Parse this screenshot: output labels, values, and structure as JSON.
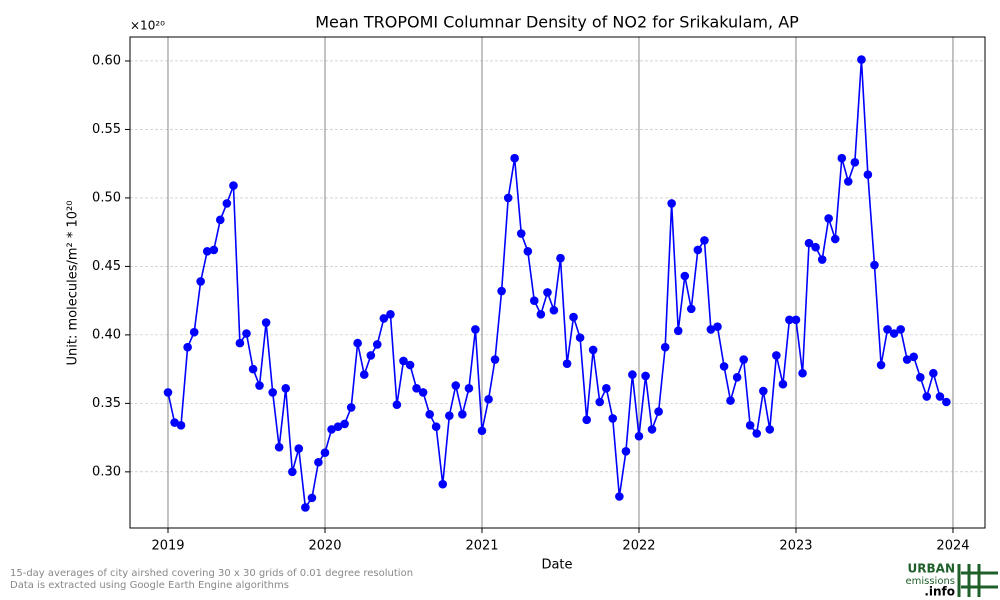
{
  "chart_data": {
    "type": "line",
    "title": "Mean TROPOMI Columnar Density of NO2 for Srikakulam, AP",
    "x_label": "Date",
    "y_label": "Unit: molecules/m² * 10²⁰",
    "y_offset_label": "×10²⁰",
    "footnote": [
      "15-day averages of city airshed covering 30 x 30 grids of 0.01 degree resolution",
      "Data is extracted using Google Earth Engine algorithms"
    ],
    "logo": [
      "URBAN",
      "emissions",
      ".info"
    ],
    "grid": true,
    "xlim": [
      2018.758,
      2024.204
    ],
    "xticks": [
      2019,
      2020,
      2021,
      2022,
      2023,
      2024
    ],
    "ylim": [
      0.259,
      0.6175
    ],
    "yticks": [
      {
        "value": 0.3,
        "label": "0.30"
      },
      0.35,
      {
        "value": 0.4,
        "label": "0.40"
      },
      0.45,
      {
        "value": 0.5,
        "label": "0.50"
      },
      0.55,
      {
        "value": 0.6,
        "label": "0.60"
      }
    ],
    "x": [
      2019,
      2019.042,
      2019.083,
      2019.125,
      2019.167,
      2019.208,
      2019.25,
      2019.292,
      2019.333,
      2019.375,
      2019.417,
      2019.458,
      2019.5,
      2019.542,
      2019.583,
      2019.625,
      2019.667,
      2019.708,
      2019.75,
      2019.792,
      2019.833,
      2019.875,
      2019.917,
      2019.958,
      2020,
      2020.042,
      2020.083,
      2020.125,
      2020.167,
      2020.208,
      2020.25,
      2020.292,
      2020.333,
      2020.375,
      2020.417,
      2020.458,
      2020.5,
      2020.542,
      2020.583,
      2020.625,
      2020.667,
      2020.708,
      2020.75,
      2020.792,
      2020.833,
      2020.875,
      2020.917,
      2020.958,
      2021,
      2021.042,
      2021.083,
      2021.125,
      2021.167,
      2021.208,
      2021.25,
      2021.292,
      2021.333,
      2021.375,
      2021.417,
      2021.458,
      2021.5,
      2021.542,
      2021.583,
      2021.625,
      2021.667,
      2021.708,
      2021.75,
      2021.792,
      2021.833,
      2021.875,
      2021.917,
      2021.958,
      2022,
      2022.042,
      2022.083,
      2022.125,
      2022.167,
      2022.208,
      2022.25,
      2022.292,
      2022.333,
      2022.375,
      2022.417,
      2022.458,
      2022.5,
      2022.542,
      2022.583,
      2022.625,
      2022.667,
      2022.708,
      2022.75,
      2022.792,
      2022.833,
      2022.875,
      2022.917,
      2022.958,
      2023,
      2023.042,
      2023.083,
      2023.125,
      2023.167,
      2023.208,
      2023.25,
      2023.292,
      2023.333,
      2023.375,
      2023.417,
      2023.458,
      2023.5,
      2023.542,
      2023.583,
      2023.625,
      2023.667,
      2023.708,
      2023.75,
      2023.792,
      2023.833,
      2023.875,
      2023.917,
      2023.958
    ],
    "series": [
      {
        "name": "NO2",
        "color": "#0000ff",
        "values": [
          0.358,
          0.336,
          0.334,
          0.391,
          0.402,
          0.439,
          0.461,
          0.462,
          0.484,
          0.496,
          0.509,
          0.394,
          0.401,
          0.375,
          0.363,
          0.409,
          0.358,
          0.318,
          0.361,
          0.3,
          0.317,
          0.274,
          0.281,
          0.307,
          0.314,
          0.331,
          0.333,
          0.335,
          0.347,
          0.394,
          0.371,
          0.385,
          0.393,
          0.412,
          0.415,
          0.349,
          0.381,
          0.378,
          0.361,
          0.358,
          0.342,
          0.333,
          0.291,
          0.341,
          0.363,
          0.342,
          0.361,
          0.404,
          0.33,
          0.353,
          0.382,
          0.432,
          0.5,
          0.529,
          0.474,
          0.461,
          0.425,
          0.415,
          0.431,
          0.418,
          0.456,
          0.379,
          0.413,
          0.398,
          0.338,
          0.389,
          0.351,
          0.361,
          0.339,
          0.282,
          0.315,
          0.371,
          0.326,
          0.37,
          0.331,
          0.344,
          0.391,
          0.496,
          0.403,
          0.443,
          0.419,
          0.462,
          0.469,
          0.404,
          0.406,
          0.377,
          0.352,
          0.369,
          0.382,
          0.334,
          0.328,
          0.359,
          0.331,
          0.385,
          0.364,
          0.411,
          0.411,
          0.372,
          0.467,
          0.464,
          0.455,
          0.485,
          0.47,
          0.529,
          0.512,
          0.526,
          0.601,
          0.517,
          0.451,
          0.378,
          0.404,
          0.401,
          0.404,
          0.382,
          0.384,
          0.369,
          0.355,
          0.372,
          0.355,
          0.351
        ]
      }
    ]
  }
}
